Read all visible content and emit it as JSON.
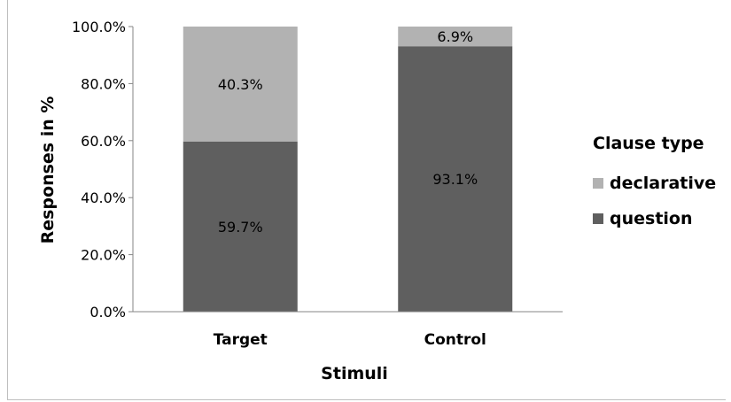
{
  "chart_data": {
    "type": "bar",
    "stacked": true,
    "categories": [
      "Target",
      "Control"
    ],
    "series": [
      {
        "name": "question",
        "values": [
          59.7,
          93.1
        ],
        "labels": [
          "59.7%",
          "93.1%"
        ],
        "color": "#5f5f5f"
      },
      {
        "name": "declarative",
        "values": [
          40.3,
          6.9
        ],
        "labels": [
          "40.3%",
          "6.9%"
        ],
        "color": "#b2b2b2"
      }
    ],
    "xlabel": "Stimuli",
    "ylabel": "Responses in %",
    "ylim": [
      0,
      100
    ],
    "yticks": [
      0,
      20,
      40,
      60,
      80,
      100
    ],
    "ytick_labels": [
      "0.0%",
      "20.0%",
      "40.0%",
      "60.0%",
      "80.0%",
      "100.0%"
    ],
    "grid": false,
    "legend": {
      "title": "Clause type",
      "position": "right",
      "entries": [
        "declarative",
        "question"
      ]
    }
  }
}
